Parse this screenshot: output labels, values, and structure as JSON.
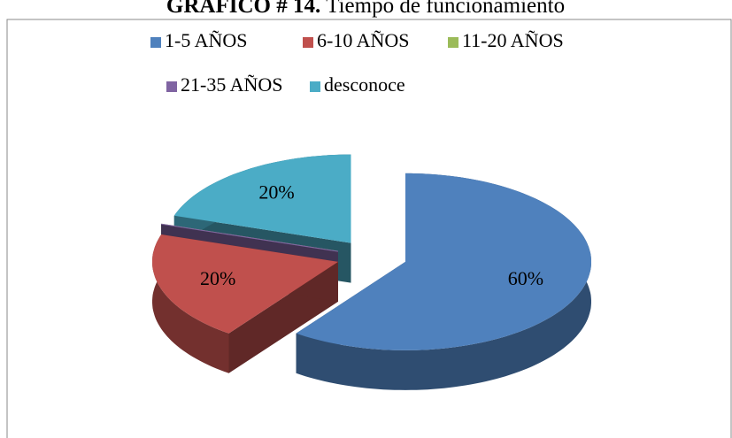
{
  "chart_data": {
    "type": "pie",
    "title_prefix": "GRÁFICO # 14.",
    "title": "Tiempo de funcionamiento",
    "categories": [
      "1-5 AÑOS",
      "6-10 AÑOS",
      "11-20 AÑOS",
      "21-35 AÑOS",
      "desconoce"
    ],
    "values": [
      60,
      20,
      0,
      0,
      20
    ],
    "value_labels": [
      "60%",
      "20%",
      null,
      null,
      "20%"
    ],
    "colors": [
      "#4f81bd",
      "#c0504d",
      "#9bbb59",
      "#8064a2",
      "#4bacc6"
    ],
    "three_d": true,
    "exploded": true,
    "legend": "top"
  }
}
